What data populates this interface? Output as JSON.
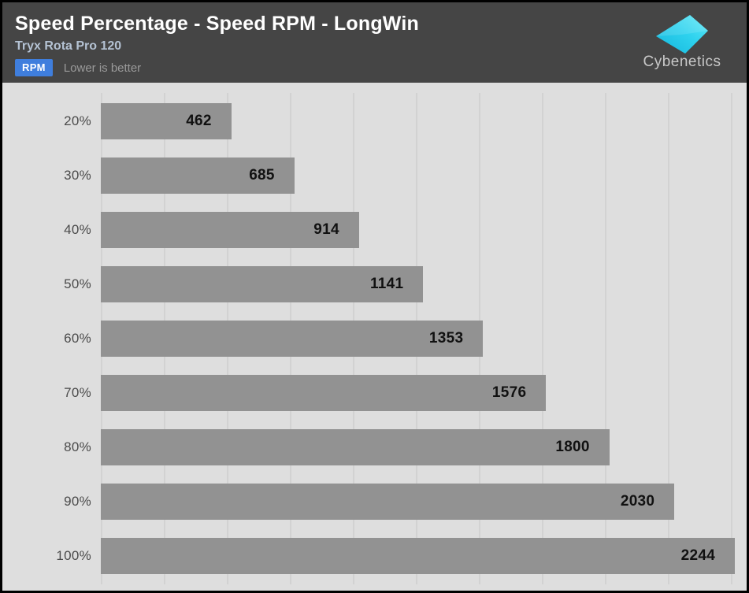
{
  "header": {
    "title": "Speed Percentage - Speed RPM - LongWin",
    "subtitle": "Tryx Rota Pro 120",
    "badge": "RPM",
    "note": "Lower is better",
    "brand": "Cybenetics"
  },
  "colors": {
    "header_bg": "#454545",
    "chart_bg": "#dedede",
    "bar": "#929292",
    "gridline": "#d2d2d2",
    "badge_bg": "#3f7edd",
    "subtitle_text": "#b4c2d3",
    "note_text": "#9a9a9a",
    "category_text": "#4b4b4b",
    "value_text": "#111111",
    "logo_cyan": "#2fd5ef"
  },
  "chart_data": {
    "type": "bar",
    "orientation": "horizontal",
    "title": "Speed Percentage - Speed RPM - LongWin",
    "subtitle": "Tryx Rota Pro 120",
    "unit": "RPM",
    "lower_is_better": true,
    "categories": [
      "20%",
      "30%",
      "40%",
      "50%",
      "60%",
      "70%",
      "80%",
      "90%",
      "100%"
    ],
    "values": [
      462,
      685,
      914,
      1141,
      1353,
      1576,
      1800,
      2030,
      2244
    ],
    "series_name": "Speed RPM",
    "xlim": [
      0,
      2280
    ],
    "gridline_count": 11,
    "grid": "vertical",
    "value_labels": "inside-end",
    "legend_position": "none"
  }
}
